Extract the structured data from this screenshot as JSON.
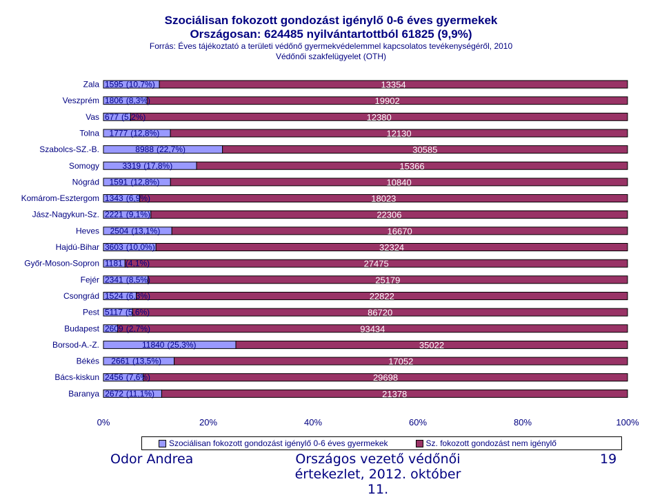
{
  "title": {
    "line1": "Szociálisan fokozott gondozást igénylő 0-6 éves gyermekek",
    "line2": "Országosan: 624485 nyilvántartottból 61825 (9,9%)",
    "line3": "Forrás: Éves tájékoztató a területi védőnő gyermekvédelemmel kapcsolatos tevékenységéről, 2010",
    "line4": "Védőnői szakfelügyelet (OTH)"
  },
  "chart_data": {
    "type": "bar",
    "orientation": "horizontal",
    "stacked": "percent",
    "categories": [
      "Zala",
      "Veszprém",
      "Vas",
      "Tolna",
      "Szabolcs-SZ.-B.",
      "Somogy",
      "Nógrád",
      "Komárom-Esztergom",
      "Jász-Nagykun-Sz.",
      "Heves",
      "Hajdú-Bihar",
      "Győr-Moson-Sopron",
      "Fejér",
      "Csongrád",
      "Pest",
      "Budapest",
      "Borsod-A.-Z.",
      "Békés",
      "Bács-kiskun",
      "Baranya"
    ],
    "series": [
      {
        "name": "Szociálisan fokozott gondozást igénylő 0-6 éves gyermekek",
        "color": "#9999ff",
        "values": [
          1595,
          1806,
          677,
          1777,
          8988,
          3319,
          1591,
          1343,
          2221,
          2504,
          3603,
          1181,
          2341,
          1524,
          5117,
          2609,
          11840,
          2661,
          2456,
          2672
        ],
        "labels": [
          "(10,7%)",
          "(8,3%)",
          "(5,2%)",
          "(12,8%)",
          "(22,7%)",
          "(17,8%)",
          "(12,8%)",
          "(6,9%)",
          "(9,1%)",
          "(13,1%)",
          "(10,0%)",
          "(4,1%)",
          "(8,5%)",
          "(6,3%)",
          "(5,6%)",
          "(2,7%)",
          "(25,3%)",
          "(13,5%)",
          "(7,6%)",
          "(11,1%)"
        ]
      },
      {
        "name": "Sz. fokozott gondozást nem igénylő",
        "color": "#993366",
        "values": [
          13354,
          19902,
          12380,
          12130,
          30585,
          15366,
          10840,
          18023,
          22306,
          16670,
          32324,
          27475,
          25179,
          22822,
          86720,
          93434,
          35022,
          17052,
          29698,
          21378
        ]
      }
    ],
    "xticks": [
      "0%",
      "20%",
      "40%",
      "60%",
      "80%",
      "100%"
    ],
    "xlim": [
      0,
      100
    ],
    "grid": false,
    "legend": "bottom"
  },
  "footer": {
    "author": "Odor Andrea",
    "event_line1": "Országos vezető védőnői",
    "event_line2": "értekezlet, 2012. október 11.",
    "page": "19"
  }
}
